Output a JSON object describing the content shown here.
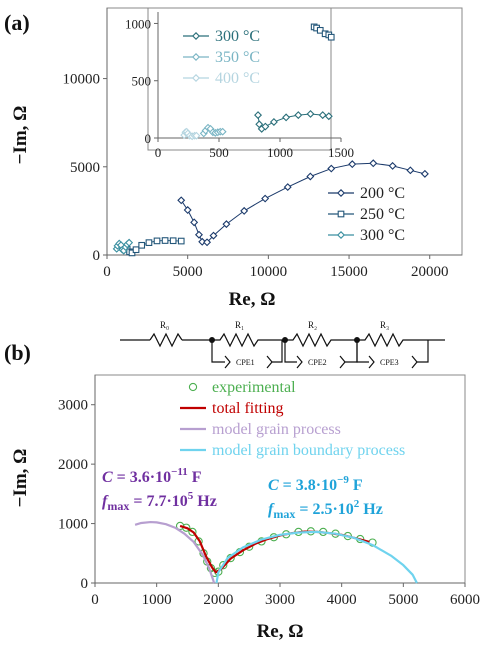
{
  "chart_data": [
    {
      "panel": "(a)",
      "type": "scatter",
      "xlabel": "Re, Ω",
      "ylabel": "−Im, Ω",
      "xlim": [
        0,
        22000
      ],
      "ylim": [
        0,
        14000
      ],
      "x_ticks": [
        "0",
        "5000",
        "10000",
        "15000",
        "20000"
      ],
      "y_ticks": [
        "0",
        "5000",
        "10000"
      ],
      "legend_placement": "bottom-right",
      "series": [
        {
          "name": "200 °C",
          "color": "#1b3a6b",
          "marker": "diamond",
          "points": [
            [
              4600,
              3100
            ],
            [
              5000,
              2550
            ],
            [
              5400,
              1850
            ],
            [
              5700,
              1150
            ],
            [
              5900,
              750
            ],
            [
              6200,
              720
            ],
            [
              6600,
              1100
            ],
            [
              7400,
              1750
            ],
            [
              8500,
              2500
            ],
            [
              9800,
              3200
            ],
            [
              11200,
              3850
            ],
            [
              12600,
              4450
            ],
            [
              13900,
              4900
            ],
            [
              15200,
              5150
            ],
            [
              16500,
              5200
            ],
            [
              17700,
              5050
            ],
            [
              18800,
              4800
            ],
            [
              19700,
              4600
            ]
          ]
        },
        {
          "name": "250 °C",
          "color": "#24577a",
          "marker": "square",
          "points": [
            [
              1250,
              330
            ],
            [
              1400,
              180
            ],
            [
              1550,
              120
            ],
            [
              1800,
              300
            ],
            [
              2150,
              550
            ],
            [
              2600,
              700
            ],
            [
              3100,
              800
            ],
            [
              3600,
              820
            ],
            [
              4100,
              810
            ],
            [
              4600,
              790
            ]
          ]
        },
        {
          "name": "300 °C",
          "color": "#3a8fa0",
          "marker": "diamond",
          "points": [
            [
              600,
              350
            ],
            [
              650,
              520
            ],
            [
              760,
              650
            ],
            [
              870,
              560
            ],
            [
              950,
              300
            ],
            [
              1040,
              250
            ],
            [
              1150,
              450
            ],
            [
              1250,
              600
            ],
            [
              1370,
              700
            ]
          ]
        }
      ]
    },
    {
      "panel": "(a) inset",
      "type": "scatter",
      "xlim": [
        0,
        1500
      ],
      "ylim": [
        0,
        1100
      ],
      "x_ticks": [
        "0",
        "500",
        "1000",
        "1500"
      ],
      "y_ticks": [
        "0",
        "500",
        "1000"
      ],
      "legend_placement": "top-left",
      "series": [
        {
          "name": "300 °C",
          "color": "#2a6f7a",
          "marker": "diamond",
          "points": [
            [
              820,
              200
            ],
            [
              830,
              120
            ],
            [
              850,
              80
            ],
            [
              880,
              100
            ],
            [
              950,
              140
            ],
            [
              1050,
              180
            ],
            [
              1150,
              200
            ],
            [
              1250,
              210
            ],
            [
              1350,
              200
            ],
            [
              1400,
              190
            ]
          ]
        },
        {
          "name": "350 °C",
          "color": "#7ab5c4",
          "marker": "diamond",
          "points": [
            [
              375,
              40
            ],
            [
              390,
              65
            ],
            [
              410,
              90
            ],
            [
              430,
              80
            ],
            [
              450,
              50
            ],
            [
              470,
              45
            ],
            [
              490,
              50
            ],
            [
              510,
              55
            ],
            [
              530,
              55
            ]
          ]
        },
        {
          "name": "400 °C",
          "color": "#b5d5e0",
          "marker": "diamond",
          "points": [
            [
              215,
              25
            ],
            [
              225,
              50
            ],
            [
              235,
              55
            ],
            [
              245,
              40
            ],
            [
              260,
              20
            ],
            [
              280,
              15
            ],
            [
              300,
              20
            ],
            [
              315,
              20
            ]
          ]
        },
        {
          "name": "",
          "color": "#24577a",
          "marker": "square",
          "points": [
            [
              1280,
              970
            ],
            [
              1300,
              960
            ],
            [
              1330,
              940
            ],
            [
              1370,
              910
            ],
            [
              1400,
              900
            ],
            [
              1420,
              880
            ]
          ]
        }
      ]
    },
    {
      "panel": "(b)",
      "type": "line",
      "xlabel": "Re, Ω",
      "ylabel": "−Im, Ω",
      "xlim": [
        0,
        6000
      ],
      "ylim": [
        0,
        3500
      ],
      "x_ticks": [
        "0",
        "1000",
        "2000",
        "3000",
        "4000",
        "5000",
        "6000"
      ],
      "y_ticks": [
        "0",
        "1000",
        "2000",
        "3000"
      ],
      "legend_placement": "top-right",
      "series": [
        {
          "name": "experimental",
          "color": "#4caf50",
          "marker": "circle",
          "points": [
            [
              1380,
              960
            ],
            [
              1480,
              930
            ],
            [
              1580,
              860
            ],
            [
              1680,
              700
            ],
            [
              1760,
              500
            ],
            [
              1820,
              360
            ],
            [
              1880,
              250
            ],
            [
              1940,
              170
            ],
            [
              2000,
              190
            ],
            [
              2080,
              300
            ],
            [
              2200,
              420
            ],
            [
              2350,
              520
            ],
            [
              2500,
              610
            ],
            [
              2700,
              700
            ],
            [
              2900,
              770
            ],
            [
              3100,
              820
            ],
            [
              3300,
              860
            ],
            [
              3500,
              870
            ],
            [
              3700,
              860
            ],
            [
              3900,
              830
            ],
            [
              4100,
              790
            ],
            [
              4300,
              740
            ],
            [
              4500,
              680
            ]
          ]
        },
        {
          "name": "total fitting",
          "color": "#c00000",
          "marker": "none",
          "points": [
            [
              1380,
              960
            ],
            [
              1500,
              920
            ],
            [
              1600,
              850
            ],
            [
              1700,
              700
            ],
            [
              1800,
              450
            ],
            [
              1900,
              260
            ],
            [
              1960,
              180
            ],
            [
              2040,
              230
            ],
            [
              2200,
              410
            ],
            [
              2400,
              550
            ],
            [
              2600,
              660
            ],
            [
              2800,
              740
            ],
            [
              3000,
              800
            ],
            [
              3200,
              840
            ],
            [
              3400,
              865
            ],
            [
              3600,
              860
            ],
            [
              3800,
              840
            ],
            [
              4000,
              810
            ],
            [
              4200,
              760
            ],
            [
              4450,
              690
            ]
          ]
        },
        {
          "name": "model grain process",
          "color": "#b79fd0",
          "marker": "none",
          "points": [
            [
              650,
              980
            ],
            [
              750,
              1010
            ],
            [
              900,
              1025
            ],
            [
              1000,
              1020
            ],
            [
              1150,
              990
            ],
            [
              1300,
              930
            ],
            [
              1450,
              830
            ],
            [
              1600,
              690
            ],
            [
              1750,
              470
            ],
            [
              1850,
              250
            ],
            [
              1920,
              40
            ],
            [
              1930,
              0
            ]
          ]
        },
        {
          "name": "model grain boundary process",
          "color": "#6fd3ee",
          "marker": "none",
          "points": [
            [
              1970,
              0
            ],
            [
              2000,
              180
            ],
            [
              2150,
              420
            ],
            [
              2400,
              600
            ],
            [
              2700,
              730
            ],
            [
              3000,
              810
            ],
            [
              3300,
              850
            ],
            [
              3600,
              860
            ],
            [
              3900,
              830
            ],
            [
              4200,
              760
            ],
            [
              4500,
              640
            ],
            [
              4800,
              460
            ],
            [
              5000,
              300
            ],
            [
              5150,
              140
            ],
            [
              5220,
              0
            ]
          ]
        }
      ],
      "annotations": {
        "grain": {
          "C": "3.6·10",
          "C_exp": "−11",
          "C_unit": " F",
          "fmax": "7.7·10",
          "fmax_exp": "5",
          "fmax_unit": " Hz",
          "color": "#7030a0"
        },
        "boundary": {
          "C": "3.8·10",
          "C_exp": "−9",
          "C_unit": " F",
          "fmax": "2.5·10",
          "fmax_exp": "2",
          "fmax_unit": " Hz",
          "color": "#1fa3d9"
        }
      },
      "circuit": {
        "labels": [
          "R₀",
          "R₁",
          "R₂",
          "R₃",
          "CPE1",
          "CPE2",
          "CPE3"
        ]
      }
    }
  ]
}
